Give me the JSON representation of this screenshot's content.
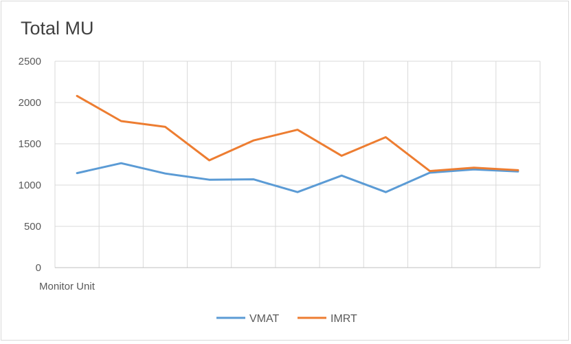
{
  "chart_data": {
    "type": "line",
    "title": "Total MU",
    "xlabel": "Monitor Unit",
    "ylabel": "",
    "ylim": [
      0,
      2500
    ],
    "yticks": [
      0,
      500,
      1000,
      1500,
      2000,
      2500
    ],
    "grid": true,
    "legend": "bottom",
    "x": [
      1,
      2,
      3,
      4,
      5,
      6,
      7,
      8,
      9,
      10,
      11
    ],
    "series": [
      {
        "name": "VMAT",
        "color": "#5b9bd5",
        "values": [
          1145,
          1265,
          1140,
          1065,
          1070,
          915,
          1115,
          915,
          1150,
          1190,
          1165
        ]
      },
      {
        "name": "IMRT",
        "color": "#ed7d31",
        "values": [
          2080,
          1775,
          1705,
          1300,
          1540,
          1670,
          1355,
          1580,
          1170,
          1210,
          1180
        ]
      }
    ]
  }
}
